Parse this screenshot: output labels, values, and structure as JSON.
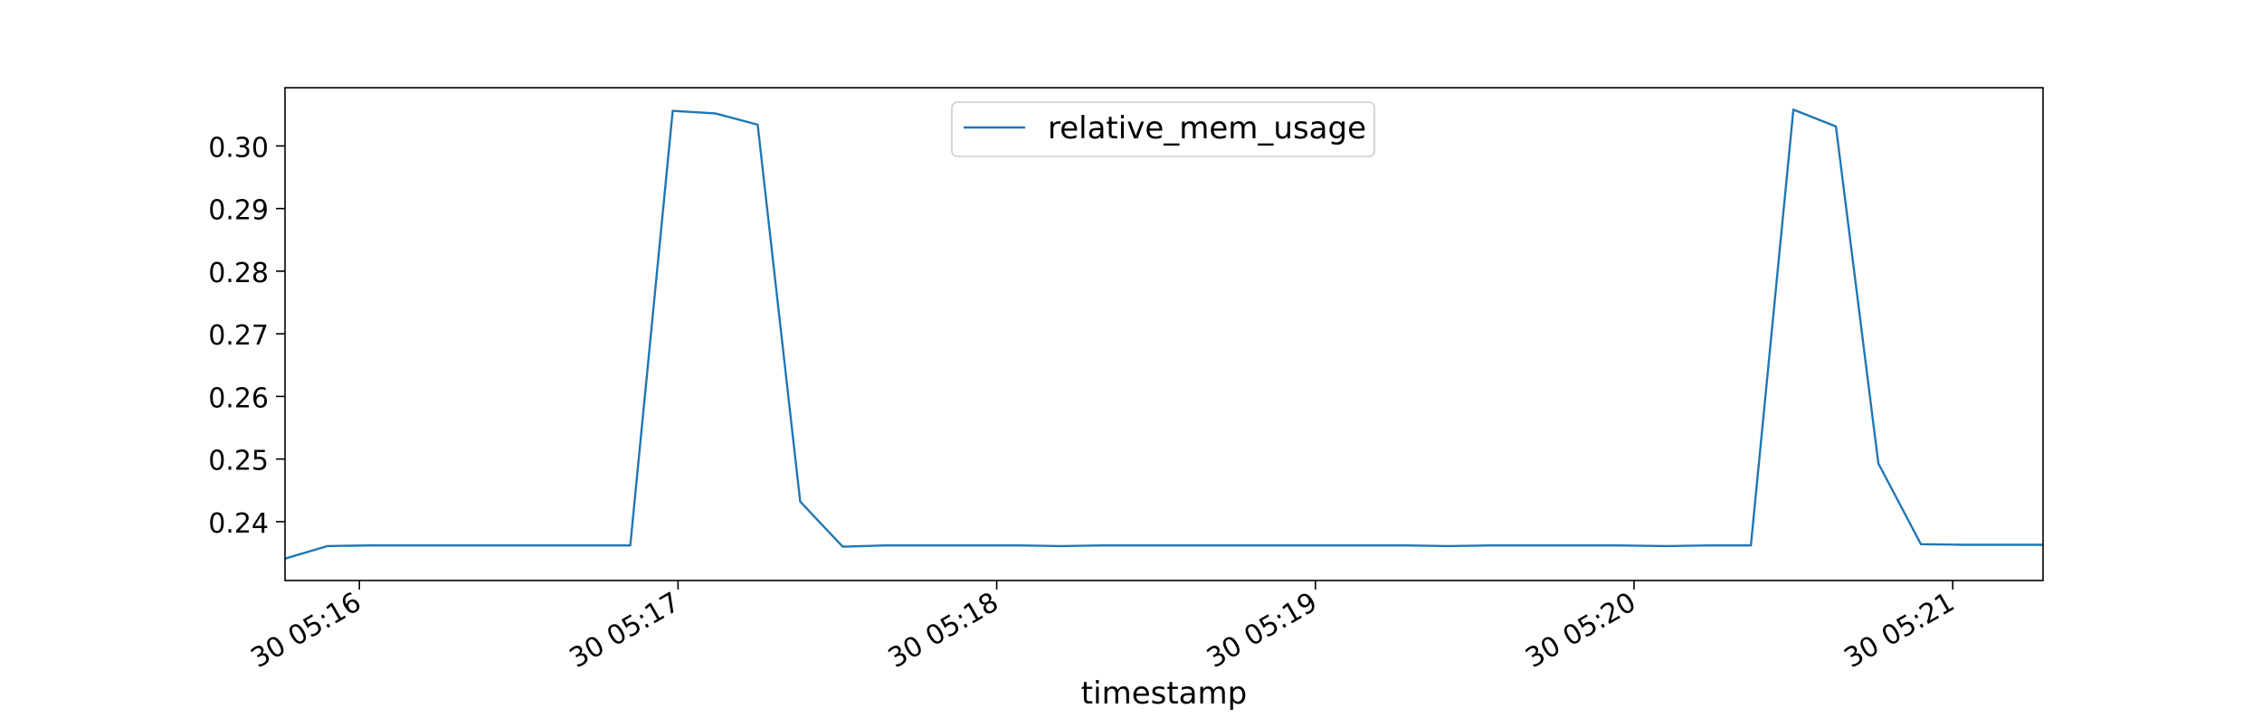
{
  "chart_data": {
    "type": "line",
    "title": "",
    "xlabel": "timestamp",
    "ylabel": "",
    "grid": false,
    "legend_position": "upper center",
    "x_ticks": [
      {
        "label": "30 05:16",
        "minute": 16
      },
      {
        "label": "30 05:17",
        "minute": 17
      },
      {
        "label": "30 05:18",
        "minute": 18
      },
      {
        "label": "30 05:19",
        "minute": 19
      },
      {
        "label": "30 05:20",
        "minute": 20
      },
      {
        "label": "30 05:21",
        "minute": 21
      }
    ],
    "y_ticks": [
      0.24,
      0.25,
      0.26,
      0.27,
      0.28,
      0.29,
      0.3
    ],
    "xlim": [
      "05:15:46",
      "05:21:17"
    ],
    "ylim": [
      0.2306,
      0.3093
    ],
    "series": [
      {
        "name": "relative_mem_usage",
        "color": "#1f77b4",
        "x": [
          "05:15:46",
          "05:15:54",
          "05:16:02",
          "05:16:10",
          "05:16:18",
          "05:16:26",
          "05:16:35",
          "05:16:43",
          "05:16:51",
          "05:16:59",
          "05:17:07",
          "05:17:15",
          "05:17:23",
          "05:17:31",
          "05:17:39",
          "05:17:48",
          "05:17:56",
          "05:18:04",
          "05:18:12",
          "05:18:20",
          "05:18:28",
          "05:18:36",
          "05:18:44",
          "05:18:53",
          "05:19:01",
          "05:19:09",
          "05:19:17",
          "05:19:25",
          "05:19:33",
          "05:19:41",
          "05:19:49",
          "05:19:57",
          "05:20:06",
          "05:20:14",
          "05:20:22",
          "05:20:30",
          "05:20:38",
          "05:20:46",
          "05:20:54",
          "05:21:02",
          "05:21:10",
          "05:21:17"
        ],
        "y": [
          0.2341,
          0.2361,
          0.2362,
          0.2362,
          0.2362,
          0.2362,
          0.2362,
          0.2362,
          0.2362,
          0.3056,
          0.3052,
          0.3034,
          0.2432,
          0.236,
          0.2362,
          0.2362,
          0.2362,
          0.2362,
          0.2361,
          0.2362,
          0.2362,
          0.2362,
          0.2362,
          0.2362,
          0.2362,
          0.2362,
          0.2362,
          0.2361,
          0.2362,
          0.2362,
          0.2362,
          0.2362,
          0.2361,
          0.2362,
          0.2362,
          0.3058,
          0.3031,
          0.2493,
          0.2364,
          0.2363,
          0.2363,
          0.2363
        ]
      }
    ]
  }
}
